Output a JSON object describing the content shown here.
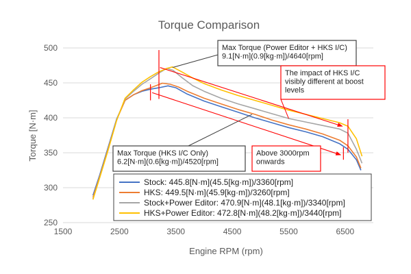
{
  "chart_data": {
    "type": "line",
    "title": "Torque Comparison",
    "xlabel": "Engine RPM (rpm)",
    "ylabel": "Torque [N·m]",
    "xlim": [
      1500,
      7000
    ],
    "ylim": [
      250,
      500
    ],
    "xticks": [
      "1500",
      "2500",
      "3500",
      "4500",
      "5500",
      "6500"
    ],
    "yticks": [
      "250",
      "300",
      "350",
      "400",
      "450",
      "500"
    ],
    "grid": "horizontal",
    "legend_position": "bottom-right",
    "series": [
      {
        "name": "Stock: 445.8[N·m](45.5[kg·m])/3360[rpm]",
        "color": "#4472C4",
        "x": [
          2030,
          2150,
          2300,
          2450,
          2600,
          2750,
          2900,
          3050,
          3200,
          3360,
          3500,
          3700,
          4000,
          4300,
          4600,
          4900,
          5200,
          5500,
          5800,
          6100,
          6400,
          6550,
          6700,
          6780
        ],
        "y": [
          289,
          318,
          358,
          398,
          425,
          433,
          438,
          441,
          443,
          445.8,
          443,
          434,
          424,
          416,
          408,
          400,
          393,
          386,
          380,
          373,
          363,
          355,
          340,
          325
        ]
      },
      {
        "name": "HKS: 449.5[N·m](45.9[kg·m])/3260[rpm]",
        "color": "#ED7D31",
        "x": [
          2030,
          2150,
          2300,
          2450,
          2600,
          2750,
          2900,
          3050,
          3260,
          3400,
          3550,
          3700,
          4000,
          4300,
          4600,
          4900,
          5200,
          5500,
          5800,
          6100,
          6400,
          6550,
          6700,
          6780
        ],
        "y": [
          286,
          316,
          356,
          397,
          425,
          433,
          439,
          443,
          449.5,
          448,
          444,
          438,
          428,
          420,
          412,
          405,
          397,
          390,
          384,
          377,
          368,
          360,
          344,
          328
        ]
      },
      {
        "name": "Stock+Power Editor: 470.9[N·m](48.1[kg·m])/3340[rpm]",
        "color": "#A5A5A5",
        "x": [
          2030,
          2150,
          2300,
          2450,
          2600,
          2750,
          2900,
          3050,
          3200,
          3340,
          3450,
          3600,
          3800,
          4000,
          4300,
          4600,
          4900,
          5200,
          5500,
          5800,
          6100,
          6400,
          6550,
          6700,
          6800
        ],
        "y": [
          284,
          315,
          355,
          397,
          427,
          438,
          448,
          456,
          464,
          470.9,
          468,
          458,
          446,
          438,
          428,
          420,
          413,
          406,
          399,
          394,
          389,
          384,
          378,
          355,
          335
        ]
      },
      {
        "name": "HKS+Power Editor: 472.8[N·m](48.2[kg·m])/3440[rpm]",
        "color": "#FFC000",
        "x": [
          2030,
          2150,
          2300,
          2450,
          2600,
          2750,
          2900,
          3050,
          3200,
          3350,
          3440,
          3600,
          3800,
          4000,
          4300,
          4600,
          4900,
          5200,
          5500,
          5800,
          6100,
          6400,
          6550,
          6700,
          6800
        ],
        "y": [
          283,
          314,
          354,
          396,
          428,
          440,
          451,
          459,
          466,
          471,
          472.8,
          466,
          457,
          449,
          440,
          432,
          425,
          418,
          411,
          405,
          399,
          393,
          388,
          370,
          345
        ]
      }
    ],
    "annotations": [
      {
        "id": "max-torque-pe-hks",
        "lines": [
          "Max Torque (Power Editor + HKS I/C)",
          "9.1[N·m](0.9[kg·m])/4640[rpm]"
        ],
        "border_color": "#404040",
        "text_color": "#1f1f1f"
      },
      {
        "id": "hks-impact",
        "lines": [
          "The impact of HKS I/C",
          "visibly different at boost",
          "levels"
        ],
        "border_color": "#FF0000",
        "text_color": "#1f1f1f"
      },
      {
        "id": "max-torque-hks",
        "lines": [
          "Max Torque (HKS I/C Only)",
          "6.2[N·m](0.6[kg·m])/4520[rpm]"
        ],
        "border_color": "#404040",
        "text_color": "#1f1f1f"
      },
      {
        "id": "above-3000",
        "lines": [
          "Above 3000rpm",
          "onwards"
        ],
        "border_color": "#FF0000",
        "text_color": "#1f1f1f"
      }
    ],
    "marker_color": "#FF0000"
  }
}
